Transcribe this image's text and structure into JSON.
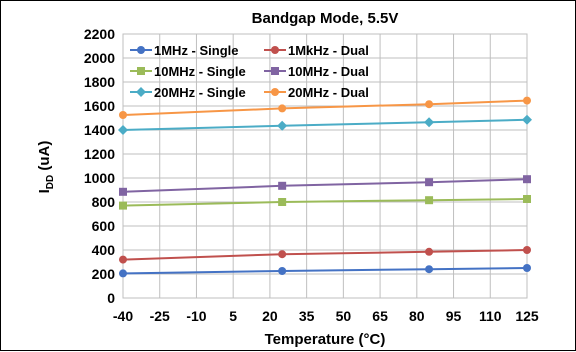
{
  "chart_data": {
    "type": "line",
    "title": "Bandgap Mode, 5.5V",
    "xlabel": "Temperature (°C)",
    "ylabel_main": "I",
    "ylabel_sub": "DD",
    "ylabel_rest": " (uA)",
    "x": [
      -40,
      25,
      85,
      125
    ],
    "xlim": [
      -40,
      125
    ],
    "x_ticks": [
      -40,
      -25,
      -10,
      5,
      20,
      35,
      50,
      65,
      80,
      95,
      110,
      125
    ],
    "ylim": [
      0,
      2200
    ],
    "y_ticks": [
      0,
      200,
      400,
      600,
      800,
      1000,
      1200,
      1400,
      1600,
      1800,
      2000,
      2200
    ],
    "grid": true,
    "legend_position": "top-left",
    "series": [
      {
        "name": "1MHz - Single",
        "color": "#4472C4",
        "marker": "circle",
        "values": [
          205,
          225,
          240,
          250
        ]
      },
      {
        "name": "1MkHz - Dual",
        "color": "#C0504D",
        "marker": "circle",
        "values": [
          320,
          365,
          385,
          400
        ]
      },
      {
        "name": "10MHz - Single",
        "color": "#9BBB59",
        "marker": "square",
        "values": [
          770,
          800,
          815,
          825
        ]
      },
      {
        "name": "10MHz - Dual",
        "color": "#8064A2",
        "marker": "square",
        "values": [
          885,
          935,
          965,
          990
        ]
      },
      {
        "name": "20MHz - Single",
        "color": "#4BACC6",
        "marker": "diamond",
        "values": [
          1400,
          1435,
          1465,
          1485
        ]
      },
      {
        "name": "20MHz - Dual",
        "color": "#F79646",
        "marker": "circle",
        "values": [
          1525,
          1580,
          1615,
          1645
        ]
      }
    ]
  }
}
